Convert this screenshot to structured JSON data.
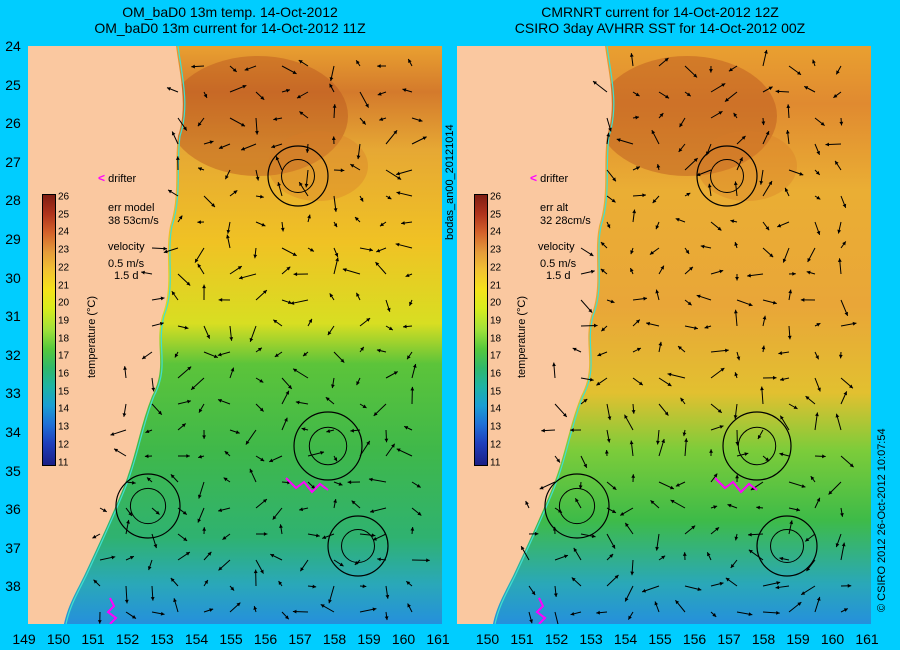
{
  "left_panel": {
    "title_line1": "OM_baD0 13m temp. 14-Oct-2012",
    "title_line2": "OM_baD0 13m current for 14-Oct-2012 11Z",
    "err_label": "err model",
    "err_value": "38 53cm/s",
    "velocity_label": "velocity",
    "velocity_scale": "0.5 m/s",
    "velocity_time": "1.5 d",
    "drifter_label": "drifter",
    "drifter_marker": "<"
  },
  "right_panel": {
    "title_line1": "CMRNRT current for 14-Oct-2012 12Z",
    "title_line2": "CSIRO 3day AVHRR SST for 14-Oct-2012 00Z",
    "err_label": "err alt",
    "err_value": "32 28cm/s",
    "velocity_label": "velocity",
    "velocity_scale": "0.5 m/s",
    "velocity_time": "1.5 d",
    "drifter_label": "drifter",
    "drifter_marker": "<"
  },
  "colorbar": {
    "ticks": [
      "26",
      "25",
      "24",
      "23",
      "22",
      "21",
      "20",
      "19",
      "18",
      "17",
      "16",
      "15",
      "14",
      "13",
      "12",
      "11"
    ],
    "title": "temperature (°C)"
  },
  "y_axis_labels": [
    "24",
    "25",
    "26",
    "27",
    "28",
    "29",
    "30",
    "31",
    "32",
    "33",
    "34",
    "35",
    "36",
    "37",
    "38"
  ],
  "x_axis_labels": [
    "149",
    "150",
    "151",
    "152",
    "153",
    "154",
    "155",
    "156",
    "157",
    "158",
    "159",
    "160",
    "161"
  ],
  "middle_label": "bodas_an00_20121014",
  "credit": "© CSIRO 2012  26-Oct-2012 10:07:54",
  "colors": {
    "background": "#00cdff",
    "land": "#fac8a0",
    "drifter": "#ff00ff",
    "coast_line": "#40e0d0"
  }
}
